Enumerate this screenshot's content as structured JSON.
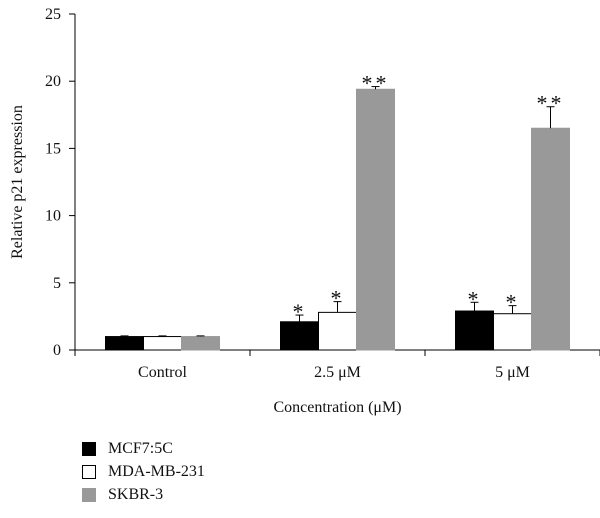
{
  "chart_data": {
    "type": "bar",
    "categories": [
      "Control",
      "2.5 μM",
      "5 μM"
    ],
    "series": [
      {
        "name": "MCF7:5C",
        "values": [
          1.0,
          2.1,
          2.9
        ],
        "errors": [
          0.05,
          0.5,
          0.65
        ],
        "annotations": [
          "",
          "*",
          "*"
        ],
        "color": "#000000"
      },
      {
        "name": "MDA-MB-231",
        "values": [
          1.0,
          2.8,
          2.7
        ],
        "errors": [
          0.05,
          0.8,
          0.6
        ],
        "annotations": [
          "",
          "*",
          "*"
        ],
        "color": "#ffffff"
      },
      {
        "name": "SKBR-3",
        "values": [
          1.0,
          19.4,
          16.5
        ],
        "errors": [
          0.05,
          0.2,
          1.6
        ],
        "annotations": [
          "",
          "**",
          "**"
        ],
        "color": "#999999"
      }
    ],
    "xlabel": "Concentration (μM)",
    "ylabel": "Relative p21 expression",
    "ylim": [
      0,
      25
    ],
    "yticks": [
      0,
      5,
      10,
      15,
      20,
      25
    ],
    "grid": false,
    "legend_position": "bottom-left"
  }
}
